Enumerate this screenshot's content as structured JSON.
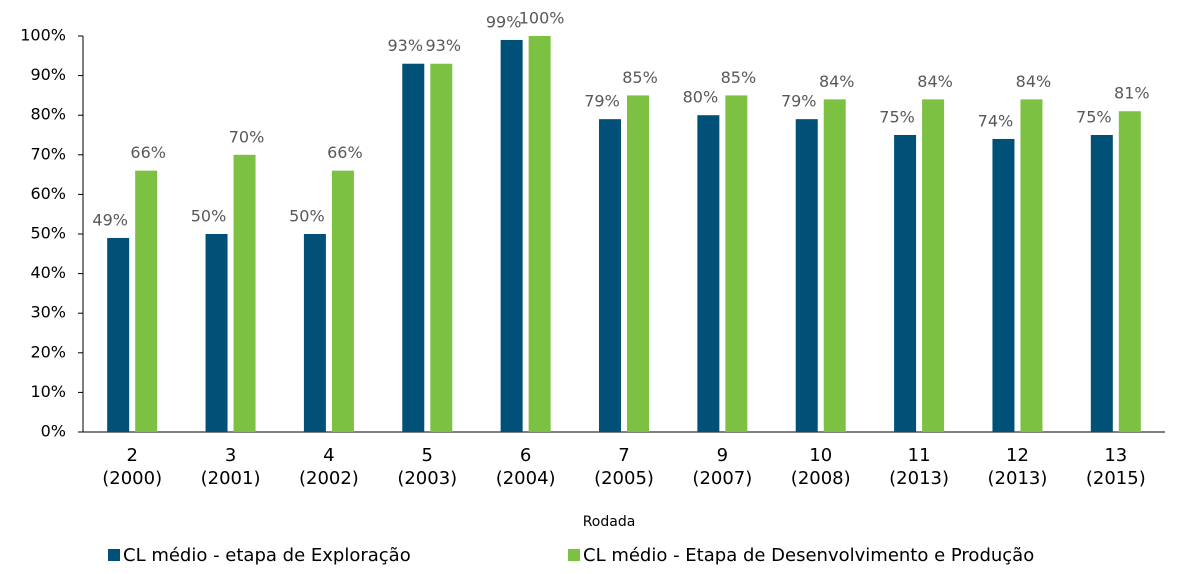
{
  "chart_data": {
    "type": "bar",
    "x_label": "Rodada",
    "categories": [
      [
        "2",
        "(2000)"
      ],
      [
        "3",
        "(2001)"
      ],
      [
        "4",
        "(2002)"
      ],
      [
        "5",
        "(2003)"
      ],
      [
        "6",
        "(2004)"
      ],
      [
        "7",
        "(2005)"
      ],
      [
        "9",
        "(2007)"
      ],
      [
        "10",
        "(2008)"
      ],
      [
        "11",
        "(2013)"
      ],
      [
        "12",
        "(2013)"
      ],
      [
        "13",
        "(2015)"
      ]
    ],
    "series": [
      {
        "name": "CL médio - etapa de Exploração",
        "color": "#005078",
        "values": [
          49,
          50,
          50,
          93,
          99,
          79,
          80,
          79,
          75,
          74,
          75
        ],
        "value_labels": [
          "49%",
          "50%",
          "50%",
          "93%",
          "99%",
          "79%",
          "80%",
          "79%",
          "75%",
          "74%",
          "75%"
        ]
      },
      {
        "name": "CL médio - Etapa de Desenvolvimento e Produção",
        "color": "#7dc142",
        "values": [
          66,
          70,
          66,
          93,
          100,
          85,
          85,
          84,
          84,
          84,
          81
        ],
        "value_labels": [
          "66%",
          "70%",
          "66%",
          "93%",
          "100%",
          "85%",
          "85%",
          "84%",
          "84%",
          "84%",
          "81%"
        ]
      }
    ],
    "ylim": [
      0,
      100
    ],
    "yticks": [
      {
        "value": 0,
        "label": "0%"
      },
      {
        "value": 10,
        "label": "10%"
      },
      {
        "value": 20,
        "label": "20%"
      },
      {
        "value": 30,
        "label": "30%"
      },
      {
        "value": 40,
        "label": "40%"
      },
      {
        "value": 50,
        "label": "50%"
      },
      {
        "value": 60,
        "label": "60%"
      },
      {
        "value": 70,
        "label": "70%"
      },
      {
        "value": 80,
        "label": "80%"
      },
      {
        "value": 90,
        "label": "90%"
      },
      {
        "value": 100,
        "label": "100%"
      }
    ],
    "grid": false,
    "legend": "bottom"
  }
}
